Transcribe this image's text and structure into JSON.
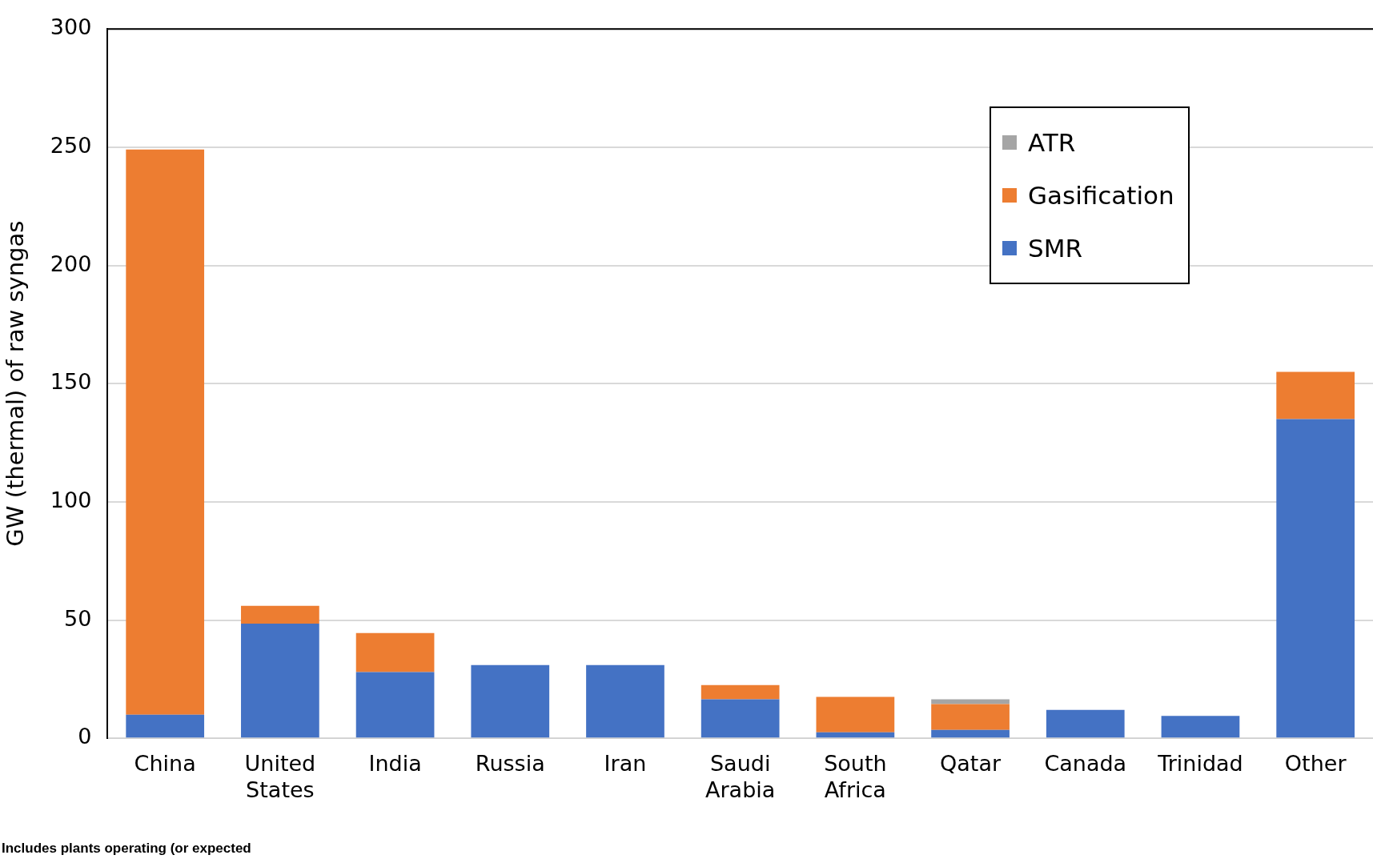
{
  "chart_data": {
    "type": "bar",
    "stacked": true,
    "ylabel": "GW (thermal) of raw syngas",
    "categories": [
      "China",
      "United States",
      "India",
      "Russia",
      "Iran",
      "Saudi Arabia",
      "South Africa",
      "Qatar",
      "Canada",
      "Trinidad",
      "Other"
    ],
    "series": [
      {
        "name": "SMR",
        "color": "#4472c4",
        "values": [
          10,
          48.5,
          28,
          31,
          31,
          16.5,
          2.5,
          3.5,
          12,
          9.5,
          135
        ]
      },
      {
        "name": "Gasification",
        "color": "#ed7d31",
        "values": [
          239,
          7.5,
          16.5,
          null,
          null,
          6,
          15,
          11,
          null,
          null,
          20
        ]
      },
      {
        "name": "ATR",
        "color": "#a5a5a5",
        "values": [
          null,
          null,
          null,
          null,
          null,
          null,
          null,
          2,
          null,
          null,
          null
        ]
      }
    ],
    "ylim": [
      0,
      300
    ],
    "yticks": [
      0,
      50,
      100,
      150,
      200,
      250,
      300
    ],
    "grid": "y",
    "legend": "top right",
    "annotations": [
      "Includes plants operating (or expected"
    ]
  }
}
